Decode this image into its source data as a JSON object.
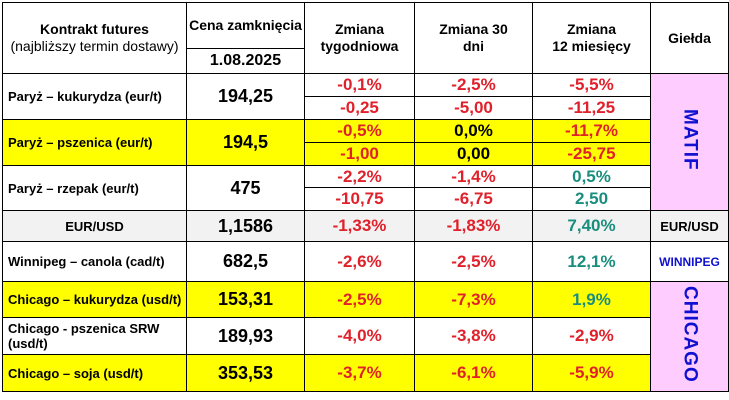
{
  "header": {
    "contract_l1": "Kontrakt futures",
    "contract_l2": "(najbliższy termin dostawy)",
    "close_l1": "Cena zamknięcia",
    "close_date": "1.08.2025",
    "weekly_l1": "Zmiana",
    "weekly_l2": "tygodniowa",
    "d30_l1": "Zmiana 30",
    "d30_l2": "dni",
    "m12_l1": "Zmiana",
    "m12_l2": "12 miesięcy",
    "exchange": "Giełda"
  },
  "rows": [
    {
      "name": "Paryż – kukurydza  (eur/t)",
      "close": "194,25",
      "weekly_pct": "-0,1%",
      "weekly_abs": "-0,25",
      "d30_pct": "-2,5%",
      "d30_abs": "-5,00",
      "m12_pct": "-5,5%",
      "m12_abs": "-11,25"
    },
    {
      "name": "Paryż – pszenica (eur/t)",
      "close": "194,5",
      "weekly_pct": "-0,5%",
      "weekly_abs": "-1,00",
      "d30_pct": "0,0%",
      "d30_abs": "0,00",
      "m12_pct": "-11,7%",
      "m12_abs": "-25,75"
    },
    {
      "name": "Paryż – rzepak (eur/t)",
      "close": "475",
      "weekly_pct": "-2,2%",
      "weekly_abs": "-10,75",
      "d30_pct": "-1,4%",
      "d30_abs": "-6,75",
      "m12_pct": "0,5%",
      "m12_abs": "2,50"
    },
    {
      "name": "EUR/USD",
      "close": "1,1586",
      "weekly": "-1,33%",
      "d30": "-1,83%",
      "m12": "7,40%"
    },
    {
      "name": "Winnipeg – canola (cad/t)",
      "close": "682,5",
      "weekly": "-2,6%",
      "d30": "-2,5%",
      "m12": "12,1%"
    },
    {
      "name": "Chicago – kukurydza (usd/t)",
      "close": "153,31",
      "weekly": "-2,5%",
      "d30": "-7,3%",
      "m12": "1,9%"
    },
    {
      "name": "Chicago - pszenica SRW (usd/t)",
      "close": "189,93",
      "weekly": "-4,0%",
      "d30": "-3,8%",
      "m12": "-2,9%"
    },
    {
      "name": "Chicago – soja (usd/t)",
      "close": "353,53",
      "weekly": "-3,7%",
      "d30": "-6,1%",
      "m12": "-5,9%"
    }
  ],
  "exchanges": {
    "matif": "MATIF",
    "eurusd": "EUR/USD",
    "winnipeg": "WINNIPEG",
    "chicago": "CHICAGO"
  },
  "colors": {
    "negative": "#e0212b",
    "positive": "#1a8e7e",
    "highlight": "#ffff00",
    "exchange_bg": "#ffccff",
    "exchange_text": "#1010d0"
  }
}
